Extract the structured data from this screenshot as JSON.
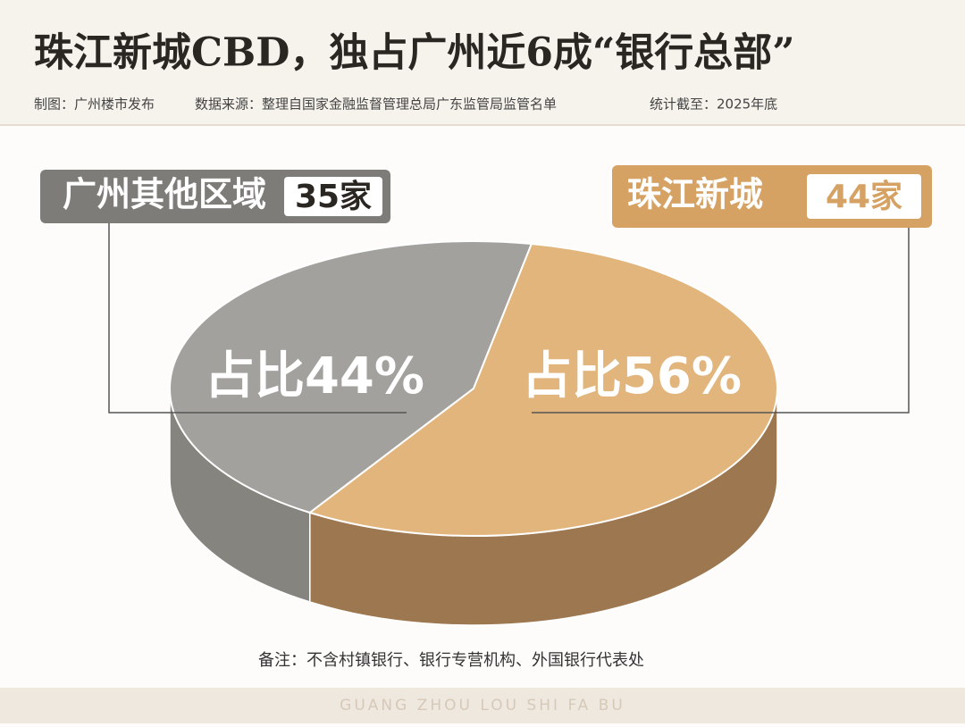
{
  "chart_data": {
    "type": "pie",
    "title": "珠江新城CBD，独占广州近6成“银行总部”",
    "credits": [
      "制图：广州楼市发布",
      "数据来源：整理自国家金融监督管理总局广东监管局监管名单",
      "统计截至：2025年底"
    ],
    "categories": [
      "广州其他区域",
      "珠江新城"
    ],
    "values": [
      44,
      56
    ],
    "value_labels": [
      "占比44%",
      "占比56%"
    ],
    "counts": [
      35,
      44
    ],
    "count_labels": [
      "35家",
      "44家"
    ],
    "colors": [
      "#a3a19e",
      "#e2b57d"
    ],
    "note": "备注：不含村镇银行、银行专营机构、外国银行代表处",
    "footer": "GUANG ZHOU LOU SHI FA BU"
  }
}
